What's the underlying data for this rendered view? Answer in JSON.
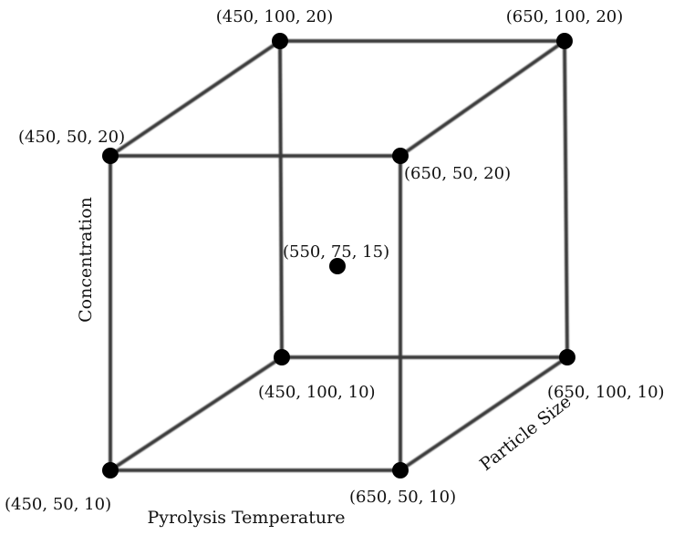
{
  "axes": {
    "x_label": "Pyrolysis Temperature",
    "y_label": "Concentration",
    "z_label": "Particle Size"
  },
  "points": [
    {
      "id": "p1",
      "label": "(450, 100, 20)",
      "value": [
        450,
        100,
        20
      ]
    },
    {
      "id": "p2",
      "label": "(650, 100, 20)",
      "value": [
        650,
        100,
        20
      ]
    },
    {
      "id": "p3",
      "label": "(450, 50, 20)",
      "value": [
        450,
        50,
        20
      ]
    },
    {
      "id": "p4",
      "label": "(650, 50, 20)",
      "value": [
        650,
        50,
        20
      ]
    },
    {
      "id": "p5",
      "label": "(550, 75, 15)",
      "value": [
        550,
        75,
        15
      ]
    },
    {
      "id": "p6",
      "label": "(450, 100, 10)",
      "value": [
        450,
        100,
        10
      ]
    },
    {
      "id": "p7",
      "label": "(650, 100, 10)",
      "value": [
        650,
        100,
        10
      ]
    },
    {
      "id": "p8",
      "label": "(450, 50, 10)",
      "value": [
        450,
        50,
        10
      ]
    },
    {
      "id": "p9",
      "label": "(650, 50, 10)",
      "value": [
        650,
        50,
        10
      ]
    }
  ],
  "colors": {
    "line": "#3a3a3a",
    "point": "#000000"
  }
}
